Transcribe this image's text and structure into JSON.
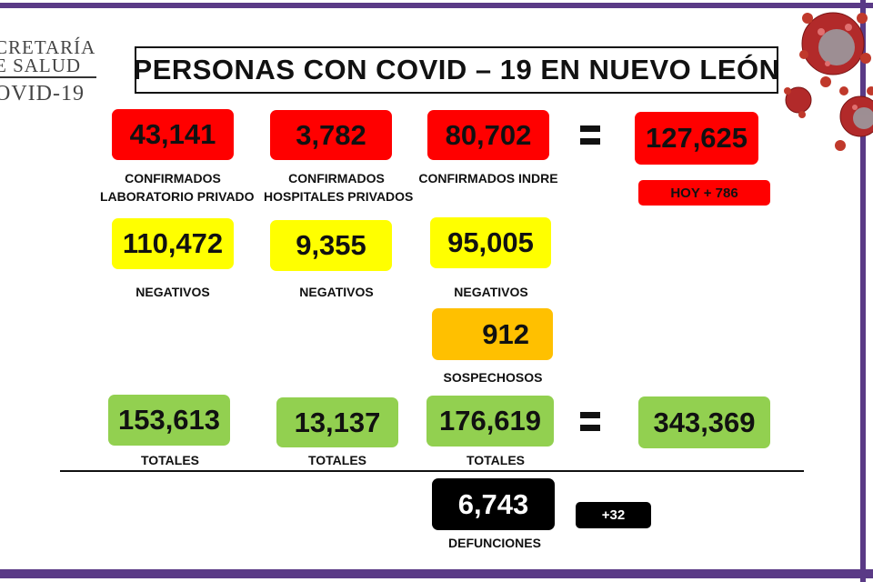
{
  "logo": {
    "line1": "CRETARÍA",
    "line2": "E SALUD",
    "line3": "OVID-19"
  },
  "title": "PERSONAS CON COVID – 19 EN NUEVO LEÓN",
  "confirmed": {
    "private_lab": {
      "value": "43,141",
      "label_line1": "CONFIRMADOS",
      "label_line2": "LABORATORIO PRIVADO"
    },
    "private_hospitals": {
      "value": "3,782",
      "label_line1": "CONFIRMADOS",
      "label_line2": "HOSPITALES PRIVADOS"
    },
    "indre": {
      "value": "80,702",
      "label": "CONFIRMADOS INDRE"
    },
    "total": "127,625",
    "today": "HOY + 786"
  },
  "negatives": {
    "private_lab": "110,472",
    "private_hospitals": "9,355",
    "indre": "95,005",
    "label": "NEGATIVOS"
  },
  "suspects": {
    "value": "912",
    "label": "SOSPECHOSOS"
  },
  "totals": {
    "private_lab": "153,613",
    "private_hospitals": "13,137",
    "indre": "176,619",
    "grand_total": "343,369",
    "label": "TOTALES"
  },
  "deaths": {
    "value": "6,743",
    "label": "DEFUNCIONES",
    "increase": "+32"
  },
  "colors": {
    "confirmed": "#ff0000",
    "negative": "#ffff00",
    "suspect": "#ffc000",
    "total": "#92d050",
    "deaths": "#000000",
    "frame": "#5a3a86"
  },
  "icons": {
    "virus": "coronavirus-illustration",
    "equals": "equals-sign"
  }
}
